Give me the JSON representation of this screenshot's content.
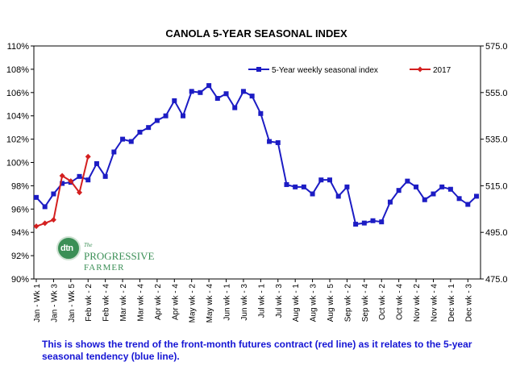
{
  "chart_data": {
    "type": "line",
    "title": "CANOLA 5-YEAR SEASONAL INDEX",
    "xlabel": "",
    "ylabel": "",
    "ylim": [
      0.9,
      1.1
    ],
    "y_ticks": [
      "110%",
      "108%",
      "106%",
      "104%",
      "102%",
      "100%",
      "98%",
      "96%",
      "94%",
      "92%",
      "90%"
    ],
    "y2lim": [
      475.0,
      575.0
    ],
    "y2_ticks": [
      "575.0",
      "555.0",
      "535.0",
      "515.0",
      "495.0",
      "475.0"
    ],
    "x_ticks": [
      "Jan - Wk 1",
      "Jan - Wk 3",
      "Jan - Wk 5",
      "Feb wk - 2",
      "Feb wk - 4",
      "Mar wk - 2",
      "Mar wk - 4",
      "Apr wk - 2",
      "Apr wk - 4",
      "May wk - 2",
      "May wk - 4",
      "Jun wk - 1",
      "Jun wk - 3",
      "Jul wk - 1",
      "Jul wk - 3",
      "Aug wk - 1",
      "Aug wk - 3",
      "Aug wk - 5",
      "Sep wk - 2",
      "Sep wk - 4",
      "Oct wk - 2",
      "Oct wk - 4",
      "Nov wk - 2",
      "Nov wk - 4",
      "Dec wk - 1",
      "Dec wk - 3"
    ],
    "grid": false,
    "legend_position": "top-right",
    "series": [
      {
        "name": "5-Year weekly seasonal index",
        "axis": "left",
        "color": "#1c1cc4",
        "marker": "square",
        "values": [
          0.97,
          0.962,
          0.973,
          0.982,
          0.983,
          0.988,
          0.985,
          0.999,
          0.988,
          1.009,
          1.02,
          1.018,
          1.026,
          1.03,
          1.036,
          1.04,
          1.053,
          1.04,
          1.061,
          1.06,
          1.066,
          1.055,
          1.059,
          1.047,
          1.061,
          1.057,
          1.042,
          1.018,
          1.017,
          0.981,
          0.979,
          0.979,
          0.973,
          0.985,
          0.985,
          0.971,
          0.979,
          0.947,
          0.948,
          0.95,
          0.949,
          0.966,
          0.976,
          0.984,
          0.979,
          0.968,
          0.973,
          0.979,
          0.977,
          0.969,
          0.964,
          0.971
        ]
      },
      {
        "name": "2017",
        "axis": "right",
        "color": "#d42020",
        "marker": "diamond",
        "values": [
          497.6,
          498.9,
          500.4,
          519.3,
          517.0,
          512.1,
          527.5
        ]
      }
    ]
  },
  "caption": "This is shows the trend of the front-month futures contract (red line) as it relates to the 5-year seasonal tendency (blue line).",
  "logo": {
    "circle_text": "dtn",
    "line1": "The",
    "line2": "PROGRESSIVE",
    "line3": "FARMER"
  }
}
